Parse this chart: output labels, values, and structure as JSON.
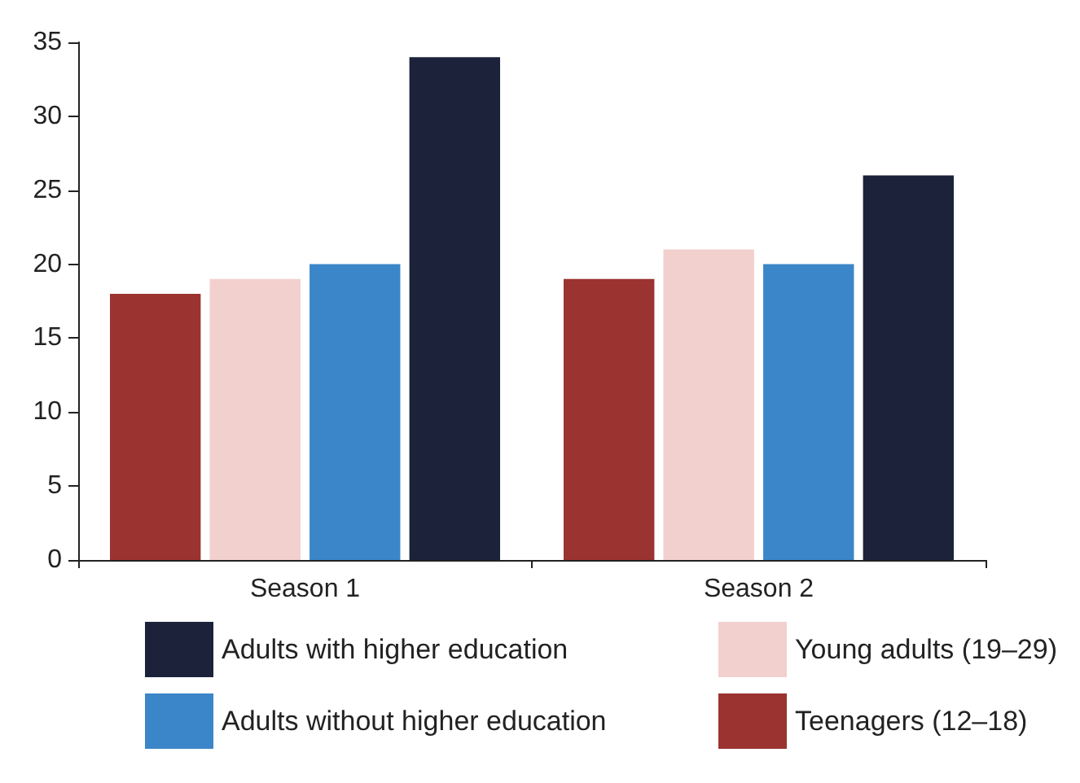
{
  "chart_data": {
    "type": "bar",
    "categories": [
      "Season 1",
      "Season 2"
    ],
    "series": [
      {
        "name": "Teenagers (12–18)",
        "color": "#9b3330",
        "values": [
          18,
          19
        ]
      },
      {
        "name": "Young adults (19–29)",
        "color": "#f2d0cd",
        "values": [
          19,
          21
        ]
      },
      {
        "name": "Adults without higher education",
        "color": "#3b86c8",
        "values": [
          20,
          20
        ]
      },
      {
        "name": "Adults with higher education",
        "color": "#1c223a",
        "values": [
          34,
          26
        ]
      }
    ],
    "ylim": [
      0,
      35
    ],
    "yticks": [
      0,
      5,
      10,
      15,
      20,
      25,
      30,
      35
    ],
    "grid": false,
    "legend": "bottom"
  }
}
